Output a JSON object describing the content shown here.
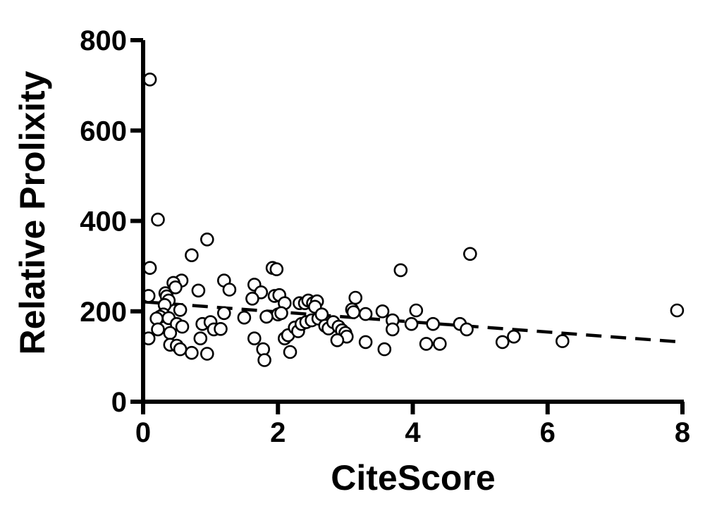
{
  "chart_data": {
    "type": "scatter",
    "title": "",
    "xlabel": "CiteScore",
    "ylabel": "Relative Prolixity",
    "xlim": [
      0,
      8
    ],
    "ylim": [
      0,
      800
    ],
    "xticks": [
      0,
      2,
      4,
      6,
      8
    ],
    "yticks": [
      0,
      200,
      400,
      600,
      800
    ],
    "xtick_labels": [
      "0",
      "2",
      "4",
      "6",
      "8"
    ],
    "ytick_labels": [
      "0",
      "200",
      "400",
      "600",
      "800"
    ],
    "grid": false,
    "marker": "open-circle",
    "trendline": {
      "style": "dashed",
      "x": [
        0,
        7.9
      ],
      "y": [
        221,
        133
      ]
    },
    "points": [
      {
        "x": 0.1,
        "y": 713
      },
      {
        "x": 0.22,
        "y": 403
      },
      {
        "x": 0.95,
        "y": 359
      },
      {
        "x": 0.72,
        "y": 324
      },
      {
        "x": 0.1,
        "y": 296
      },
      {
        "x": 0.57,
        "y": 268
      },
      {
        "x": 0.45,
        "y": 263
      },
      {
        "x": 0.48,
        "y": 253
      },
      {
        "x": 0.82,
        "y": 246
      },
      {
        "x": 0.33,
        "y": 240
      },
      {
        "x": 0.35,
        "y": 233
      },
      {
        "x": 0.38,
        "y": 224
      },
      {
        "x": 0.08,
        "y": 234
      },
      {
        "x": 0.32,
        "y": 214
      },
      {
        "x": 0.55,
        "y": 203
      },
      {
        "x": 0.3,
        "y": 193
      },
      {
        "x": 0.25,
        "y": 188
      },
      {
        "x": 0.2,
        "y": 184
      },
      {
        "x": 0.38,
        "y": 185
      },
      {
        "x": 0.5,
        "y": 172
      },
      {
        "x": 0.58,
        "y": 166
      },
      {
        "x": 0.22,
        "y": 160
      },
      {
        "x": 0.4,
        "y": 152
      },
      {
        "x": 0.08,
        "y": 140
      },
      {
        "x": 0.4,
        "y": 126
      },
      {
        "x": 0.5,
        "y": 124
      },
      {
        "x": 0.55,
        "y": 116
      },
      {
        "x": 0.72,
        "y": 108
      },
      {
        "x": 0.95,
        "y": 106
      },
      {
        "x": 0.88,
        "y": 172
      },
      {
        "x": 1.0,
        "y": 176
      },
      {
        "x": 1.05,
        "y": 160
      },
      {
        "x": 1.15,
        "y": 161
      },
      {
        "x": 0.85,
        "y": 140
      },
      {
        "x": 1.2,
        "y": 268
      },
      {
        "x": 1.28,
        "y": 248
      },
      {
        "x": 1.2,
        "y": 196
      },
      {
        "x": 1.5,
        "y": 186
      },
      {
        "x": 1.65,
        "y": 259
      },
      {
        "x": 1.75,
        "y": 242
      },
      {
        "x": 1.62,
        "y": 228
      },
      {
        "x": 1.92,
        "y": 296
      },
      {
        "x": 1.98,
        "y": 293
      },
      {
        "x": 1.95,
        "y": 234
      },
      {
        "x": 2.02,
        "y": 236
      },
      {
        "x": 2.1,
        "y": 218
      },
      {
        "x": 2.0,
        "y": 193
      },
      {
        "x": 2.05,
        "y": 196
      },
      {
        "x": 1.83,
        "y": 188
      },
      {
        "x": 1.65,
        "y": 140
      },
      {
        "x": 1.78,
        "y": 116
      },
      {
        "x": 1.8,
        "y": 92
      },
      {
        "x": 2.1,
        "y": 140
      },
      {
        "x": 2.15,
        "y": 147
      },
      {
        "x": 2.18,
        "y": 110
      },
      {
        "x": 2.25,
        "y": 164
      },
      {
        "x": 2.3,
        "y": 156
      },
      {
        "x": 2.32,
        "y": 218
      },
      {
        "x": 2.4,
        "y": 218
      },
      {
        "x": 2.45,
        "y": 224
      },
      {
        "x": 2.52,
        "y": 218
      },
      {
        "x": 2.58,
        "y": 222
      },
      {
        "x": 2.55,
        "y": 210
      },
      {
        "x": 2.35,
        "y": 172
      },
      {
        "x": 2.42,
        "y": 176
      },
      {
        "x": 2.5,
        "y": 180
      },
      {
        "x": 2.6,
        "y": 184
      },
      {
        "x": 2.65,
        "y": 193
      },
      {
        "x": 2.7,
        "y": 168
      },
      {
        "x": 2.75,
        "y": 162
      },
      {
        "x": 2.82,
        "y": 176
      },
      {
        "x": 2.9,
        "y": 166
      },
      {
        "x": 2.95,
        "y": 158
      },
      {
        "x": 3.0,
        "y": 152
      },
      {
        "x": 3.02,
        "y": 144
      },
      {
        "x": 2.88,
        "y": 136
      },
      {
        "x": 3.1,
        "y": 204
      },
      {
        "x": 3.15,
        "y": 230
      },
      {
        "x": 3.12,
        "y": 198
      },
      {
        "x": 3.3,
        "y": 194
      },
      {
        "x": 3.3,
        "y": 132
      },
      {
        "x": 3.55,
        "y": 200
      },
      {
        "x": 3.58,
        "y": 116
      },
      {
        "x": 3.7,
        "y": 180
      },
      {
        "x": 3.7,
        "y": 160
      },
      {
        "x": 3.82,
        "y": 291
      },
      {
        "x": 3.98,
        "y": 172
      },
      {
        "x": 4.05,
        "y": 202
      },
      {
        "x": 4.2,
        "y": 128
      },
      {
        "x": 4.3,
        "y": 172
      },
      {
        "x": 4.4,
        "y": 128
      },
      {
        "x": 4.7,
        "y": 172
      },
      {
        "x": 4.8,
        "y": 160
      },
      {
        "x": 4.85,
        "y": 327
      },
      {
        "x": 5.33,
        "y": 132
      },
      {
        "x": 5.5,
        "y": 144
      },
      {
        "x": 6.22,
        "y": 134
      },
      {
        "x": 7.92,
        "y": 202
      }
    ]
  }
}
